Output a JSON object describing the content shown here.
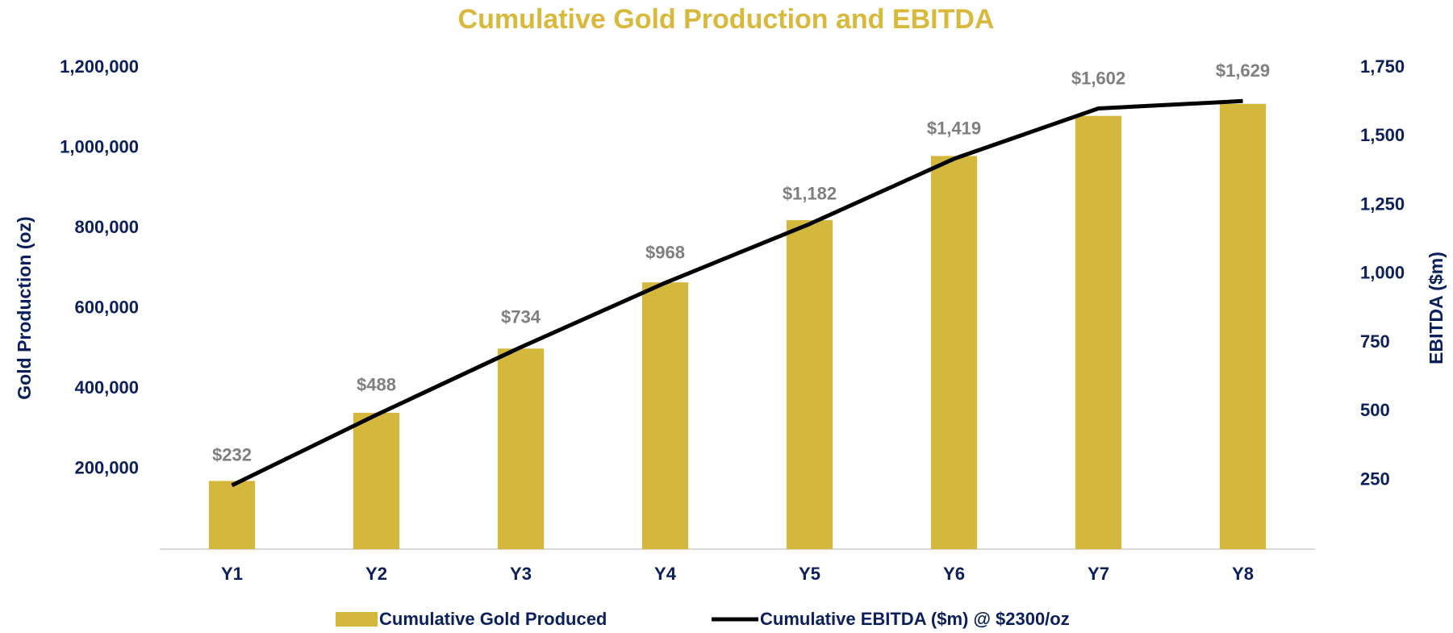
{
  "chart_data": {
    "type": "bar",
    "title": "Cumulative Gold Production and EBITDA",
    "categories": [
      "Y1",
      "Y2",
      "Y3",
      "Y4",
      "Y5",
      "Y6",
      "Y7",
      "Y8"
    ],
    "ylabel": "Gold Production (oz)",
    "y2label": "EBITDA ($m)",
    "ylim": [
      0,
      1200000
    ],
    "yticks": [
      {
        "value": 200000,
        "label": "200,000"
      },
      {
        "value": 400000,
        "label": "400,000"
      },
      {
        "value": 600000,
        "label": "600,000"
      },
      {
        "value": 800000,
        "label": "800,000"
      },
      {
        "value": 1000000,
        "label": "1,000,000"
      },
      {
        "value": 1200000,
        "label": "1,200,000"
      }
    ],
    "y2lim": [
      0,
      1750
    ],
    "y2ticks": [
      250,
      500,
      750,
      {
        "value": 1000,
        "label": "1,000"
      },
      {
        "value": 1250,
        "label": "1,250"
      },
      {
        "value": 1500,
        "label": "1,500"
      },
      {
        "value": 1750,
        "label": "1,750"
      }
    ],
    "grid": false,
    "series": [
      {
        "name": "Cumulative Gold Produced",
        "type": "bar",
        "color": "#d4b83e",
        "values": [
          170000,
          340000,
          500000,
          665000,
          820000,
          980000,
          1080000,
          1110000
        ]
      },
      {
        "name": "Cumulative EBITDA ($m) @ $2300/oz",
        "type": "line",
        "axis": "y2",
        "color": "#000000",
        "values": [
          232,
          488,
          734,
          968,
          1182,
          1419,
          1602,
          1629
        ],
        "value_labels": [
          "$232",
          "$488",
          "$734",
          "$968",
          "$1,182",
          "$1,419",
          "$1,602",
          "$1,629"
        ]
      }
    ]
  }
}
